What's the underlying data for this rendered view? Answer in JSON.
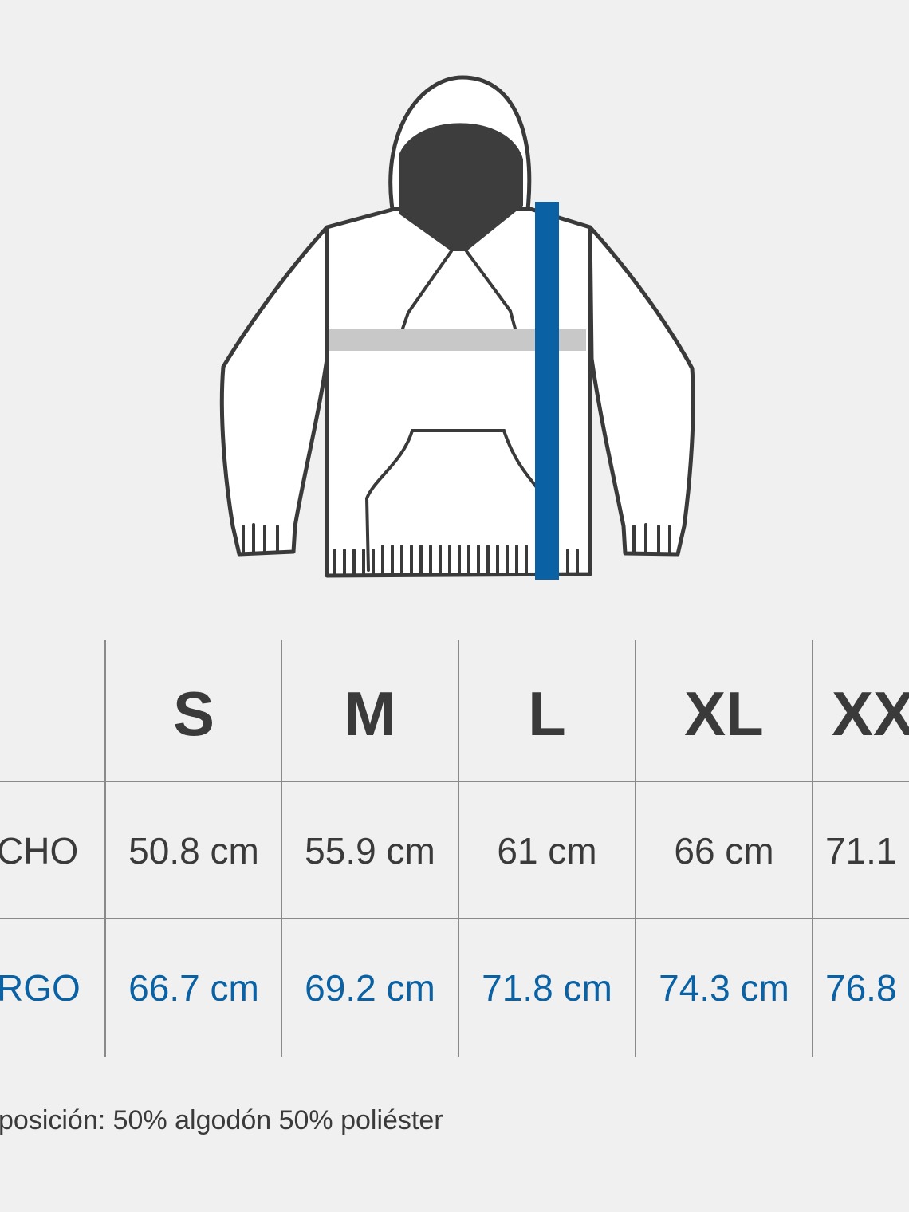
{
  "colors": {
    "background": "#f0f0f0",
    "accent_blue": "#0a62a5",
    "text_dark": "#3a3a3a",
    "chest_bar": "#c8c8c8"
  },
  "illustration": {
    "icon": "hoodie-measurement-diagram"
  },
  "table": {
    "sizes": [
      "S",
      "M",
      "L",
      "XL",
      "XX"
    ],
    "rows": [
      {
        "label": "CHO",
        "values": [
          "50.8 cm",
          "55.9 cm",
          "61 cm",
          "66 cm",
          "71.1"
        ]
      },
      {
        "label": "RGO",
        "values": [
          "66.7 cm",
          "69.2 cm",
          "71.8 cm",
          "74.3 cm",
          "76.8"
        ]
      }
    ]
  },
  "footer": "posición: 50% algodón 50% poliéster"
}
